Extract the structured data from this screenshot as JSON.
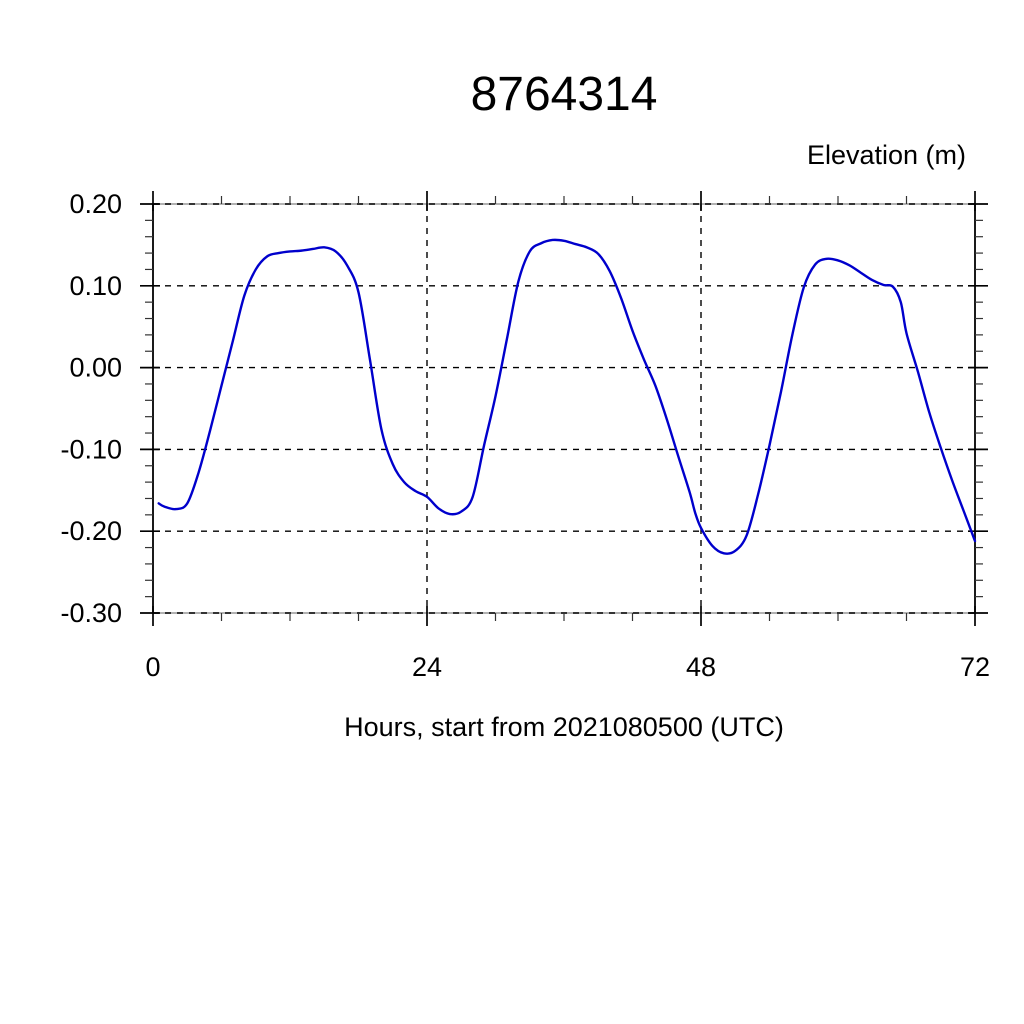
{
  "chart_data": {
    "type": "line",
    "title": "8764314",
    "xlabel": "Hours, start from 2021080500 (UTC)",
    "ylabel": "Elevation (m)",
    "xlim": [
      0,
      72
    ],
    "ylim": [
      -0.3,
      0.2
    ],
    "xticks_major": [
      0,
      24,
      48,
      72
    ],
    "xtick_labels": [
      "0",
      "24",
      "48",
      "72"
    ],
    "xtick_minor_step": 6,
    "yticks_major": [
      0.2,
      0.1,
      0.0,
      -0.1,
      -0.2,
      -0.3
    ],
    "ytick_labels": [
      "0.20",
      "0.10",
      "0.00",
      "-0.10",
      "-0.20",
      "-0.30"
    ],
    "ytick_minor_step": 0.02,
    "grid": "dashed-at-major-ticks",
    "legend": "none",
    "line_color": "#0000cc",
    "frame_color": "#000000",
    "grid_color": "#000000",
    "series": [
      {
        "name": "elevation",
        "x": [
          0.5,
          1,
          2,
          3,
          4,
          5,
          6,
          7,
          8,
          9,
          10,
          11,
          12,
          13,
          14,
          15,
          16,
          17,
          18,
          19,
          20,
          21,
          22,
          23,
          24,
          25,
          26,
          27,
          28,
          29,
          30,
          31,
          32,
          33,
          34,
          35,
          36,
          37,
          38,
          39,
          40,
          41,
          42,
          43,
          44,
          45,
          46,
          47,
          47.5,
          48,
          49,
          50,
          51,
          52,
          53,
          54,
          55,
          56,
          57,
          58,
          59,
          60,
          61,
          62,
          63,
          64,
          64.8,
          65.5,
          66,
          67,
          68,
          69,
          70,
          71,
          72
        ],
        "y": [
          -0.166,
          -0.17,
          -0.173,
          -0.166,
          -0.128,
          -0.077,
          -0.022,
          0.033,
          0.088,
          0.12,
          0.136,
          0.14,
          0.142,
          0.143,
          0.145,
          0.147,
          0.142,
          0.125,
          0.092,
          0.01,
          -0.075,
          -0.118,
          -0.14,
          -0.151,
          -0.158,
          -0.172,
          -0.179,
          -0.176,
          -0.158,
          -0.095,
          -0.035,
          0.035,
          0.105,
          0.142,
          0.152,
          0.156,
          0.155,
          0.151,
          0.147,
          0.139,
          0.118,
          0.085,
          0.045,
          0.01,
          -0.022,
          -0.063,
          -0.108,
          -0.152,
          -0.178,
          -0.196,
          -0.218,
          -0.227,
          -0.224,
          -0.205,
          -0.155,
          -0.095,
          -0.03,
          0.04,
          0.098,
          0.126,
          0.133,
          0.131,
          0.125,
          0.116,
          0.107,
          0.101,
          0.099,
          0.08,
          0.042,
          -0.005,
          -0.055,
          -0.098,
          -0.138,
          -0.175,
          -0.212
        ]
      }
    ]
  }
}
